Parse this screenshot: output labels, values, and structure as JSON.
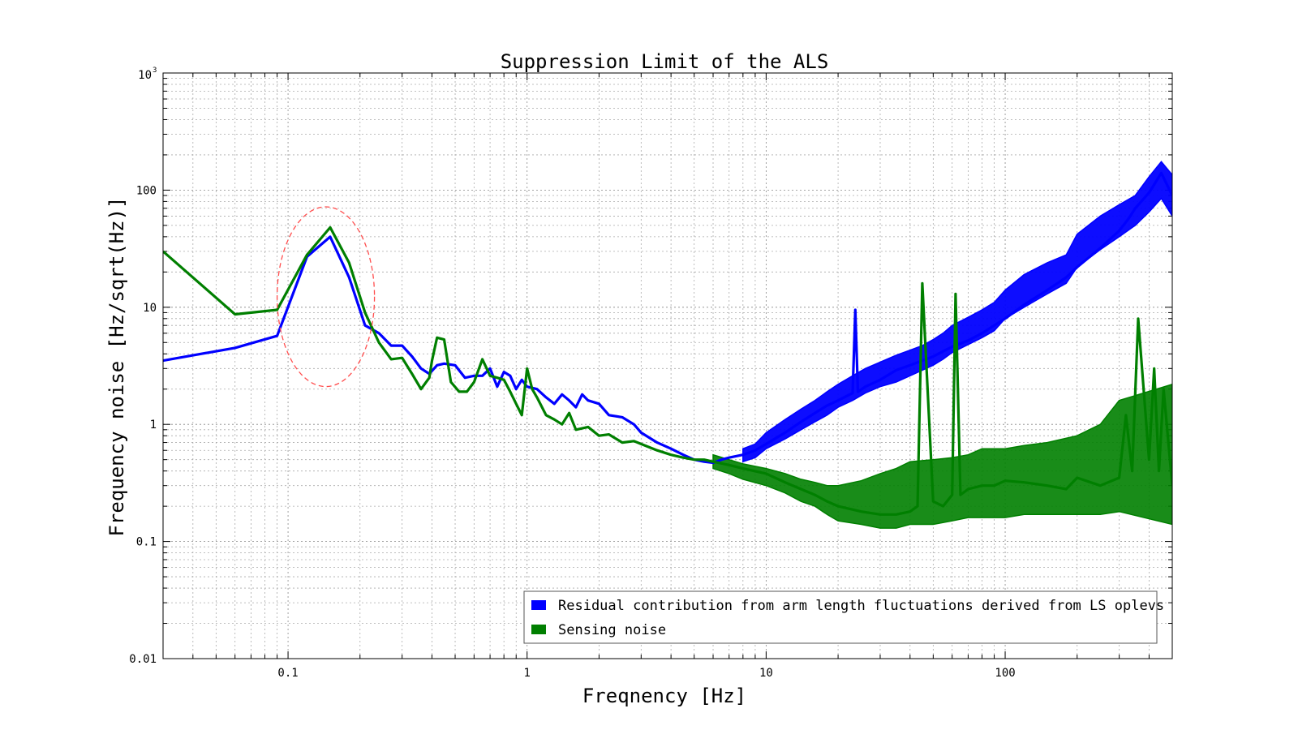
{
  "chart_data": {
    "type": "line",
    "title": "Suppression Limit of the ALS",
    "xlabel": "Freqnency [Hz]",
    "ylabel": "Frequency noise [Hz/sqrt(Hz)]",
    "xscale": "log",
    "yscale": "log",
    "xlim": [
      0.03,
      500
    ],
    "ylim": [
      0.01,
      1000
    ],
    "grid": true,
    "legend_position": "bottom-right",
    "x_ticks": [
      {
        "value": 0.1,
        "label": "0.1"
      },
      {
        "value": 1,
        "label": "1"
      },
      {
        "value": 10,
        "label": "10"
      },
      {
        "value": 100,
        "label": "100"
      }
    ],
    "y_ticks": [
      {
        "value": 0.01,
        "label": "0.01"
      },
      {
        "value": 0.1,
        "label": "0.1"
      },
      {
        "value": 1,
        "label": "1"
      },
      {
        "value": 10,
        "label": "10"
      },
      {
        "value": 100,
        "label": "100"
      }
    ],
    "y_top_tick": {
      "value": 1000,
      "base": "10",
      "exp": "3"
    },
    "annotation": {
      "type": "ellipse",
      "style": "dashed",
      "color": "#ff4d4d",
      "center_x": 0.145,
      "center_y": 12,
      "x_range": [
        0.09,
        0.23
      ],
      "y_range": [
        2.1,
        72
      ]
    },
    "series": [
      {
        "name": "Residual contribution from arm length fluctuations derived from LS oplevs",
        "color": "#0000ff",
        "x": [
          0.03,
          0.06,
          0.09,
          0.12,
          0.15,
          0.18,
          0.21,
          0.24,
          0.27,
          0.3,
          0.33,
          0.36,
          0.39,
          0.42,
          0.45,
          0.5,
          0.55,
          0.6,
          0.65,
          0.7,
          0.75,
          0.8,
          0.85,
          0.9,
          0.95,
          1.0,
          1.1,
          1.2,
          1.3,
          1.4,
          1.5,
          1.6,
          1.7,
          1.8,
          2.0,
          2.2,
          2.5,
          2.8,
          3.0,
          3.5,
          4.0,
          4.5,
          5.0,
          5.5,
          6.0,
          6.5,
          7.0,
          8.0,
          9.0,
          10,
          12,
          14,
          16,
          18,
          20,
          23,
          23.6,
          24.2,
          26,
          30,
          35,
          40,
          45,
          50,
          55,
          60,
          70,
          80,
          90,
          100,
          120,
          150,
          180,
          200,
          250,
          300,
          330,
          350,
          400,
          450,
          500
        ],
        "values": [
          3.5,
          4.5,
          5.7,
          27,
          40,
          18,
          7,
          6,
          4.7,
          4.7,
          3.8,
          3.0,
          2.7,
          3.2,
          3.3,
          3.2,
          2.5,
          2.6,
          2.6,
          3.0,
          2.1,
          2.8,
          2.6,
          2.0,
          2.4,
          2.1,
          2.0,
          1.7,
          1.5,
          1.8,
          1.6,
          1.4,
          1.8,
          1.6,
          1.5,
          1.2,
          1.15,
          1.0,
          0.85,
          0.7,
          0.62,
          0.55,
          0.5,
          0.48,
          0.47,
          0.5,
          0.52,
          0.55,
          0.6,
          0.68,
          0.85,
          1.05,
          1.25,
          1.45,
          1.6,
          1.85,
          9.5,
          1.9,
          2.1,
          2.4,
          2.9,
          3.2,
          3.5,
          3.8,
          4.2,
          4.6,
          5.2,
          6.0,
          7.0,
          8.0,
          10.5,
          14,
          18,
          22,
          32,
          45,
          58,
          70,
          95,
          140,
          90
        ],
        "band_upper": [
          0.62,
          0.68,
          0.85,
          1.1,
          1.35,
          1.6,
          1.9,
          2.2,
          2.6,
          3.0,
          3.4,
          3.9,
          4.3,
          4.7,
          5.3,
          6.0,
          7.0,
          8.2,
          9.5,
          11,
          14,
          19,
          24,
          28,
          42,
          60,
          75,
          90,
          130,
          175,
          135
        ],
        "band_lower": [
          0.48,
          0.52,
          0.62,
          0.75,
          0.9,
          1.05,
          1.2,
          1.4,
          1.6,
          1.85,
          2.1,
          2.3,
          2.6,
          2.9,
          3.2,
          3.6,
          4.1,
          4.8,
          5.5,
          6.3,
          8.0,
          10,
          13,
          16,
          22,
          31,
          40,
          50,
          65,
          85,
          60
        ],
        "band_x": [
          8.0,
          9.0,
          10,
          12,
          14,
          16,
          18,
          20,
          23,
          26,
          30,
          35,
          40,
          45,
          50,
          55,
          60,
          70,
          80,
          90,
          100,
          120,
          150,
          180,
          200,
          250,
          300,
          350,
          400,
          450,
          500
        ]
      },
      {
        "name": "Sensing noise",
        "color": "#007f00",
        "x": [
          0.03,
          0.06,
          0.09,
          0.12,
          0.15,
          0.18,
          0.21,
          0.24,
          0.27,
          0.3,
          0.33,
          0.36,
          0.39,
          0.4,
          0.42,
          0.45,
          0.48,
          0.52,
          0.56,
          0.6,
          0.65,
          0.7,
          0.75,
          0.8,
          0.85,
          0.9,
          0.95,
          1.0,
          1.05,
          1.1,
          1.2,
          1.3,
          1.4,
          1.5,
          1.6,
          1.8,
          2.0,
          2.2,
          2.5,
          2.8,
          3.0,
          3.5,
          4.0,
          4.5,
          5.0,
          5.5,
          6.0,
          7.0,
          8.0,
          10,
          12,
          14,
          16,
          18,
          20,
          25,
          30,
          35,
          40,
          43,
          45,
          50,
          55,
          60,
          62,
          65,
          70,
          80,
          90,
          100,
          120,
          150,
          180,
          200,
          250,
          300,
          320,
          340,
          360,
          400,
          420,
          440,
          460,
          500
        ],
        "values": [
          30,
          8.7,
          9.5,
          28,
          48,
          24,
          9,
          5,
          3.6,
          3.7,
          2.7,
          2.0,
          2.5,
          3.5,
          5.5,
          5.3,
          2.3,
          1.9,
          1.9,
          2.3,
          3.6,
          2.6,
          2.5,
          2.4,
          1.9,
          1.5,
          1.2,
          3.0,
          2.0,
          1.7,
          1.2,
          1.1,
          1.0,
          1.25,
          0.9,
          0.95,
          0.8,
          0.82,
          0.7,
          0.72,
          0.68,
          0.6,
          0.55,
          0.52,
          0.5,
          0.5,
          0.48,
          0.45,
          0.42,
          0.38,
          0.32,
          0.28,
          0.25,
          0.22,
          0.2,
          0.18,
          0.17,
          0.17,
          0.18,
          0.2,
          16,
          0.22,
          0.2,
          0.25,
          13,
          0.25,
          0.28,
          0.3,
          0.3,
          0.33,
          0.32,
          0.3,
          0.28,
          0.35,
          0.3,
          0.35,
          1.2,
          0.4,
          8.0,
          0.5,
          3.0,
          0.4,
          2.0,
          0.3
        ],
        "band_upper": [
          0.55,
          0.5,
          0.46,
          0.42,
          0.38,
          0.34,
          0.32,
          0.3,
          0.3,
          0.33,
          0.38,
          0.42,
          0.48,
          0.5,
          0.52,
          0.55,
          0.62,
          0.62,
          0.66,
          0.7,
          0.8,
          1.0,
          1.6,
          2.2
        ],
        "band_lower": [
          0.42,
          0.38,
          0.34,
          0.3,
          0.26,
          0.22,
          0.2,
          0.17,
          0.15,
          0.14,
          0.13,
          0.13,
          0.14,
          0.14,
          0.15,
          0.16,
          0.16,
          0.16,
          0.17,
          0.17,
          0.17,
          0.17,
          0.18,
          0.14
        ],
        "band_x": [
          6.0,
          7.0,
          8.0,
          10,
          12,
          14,
          16,
          18,
          20,
          25,
          30,
          35,
          40,
          50,
          60,
          70,
          80,
          100,
          120,
          150,
          200,
          250,
          300,
          500
        ]
      }
    ]
  }
}
